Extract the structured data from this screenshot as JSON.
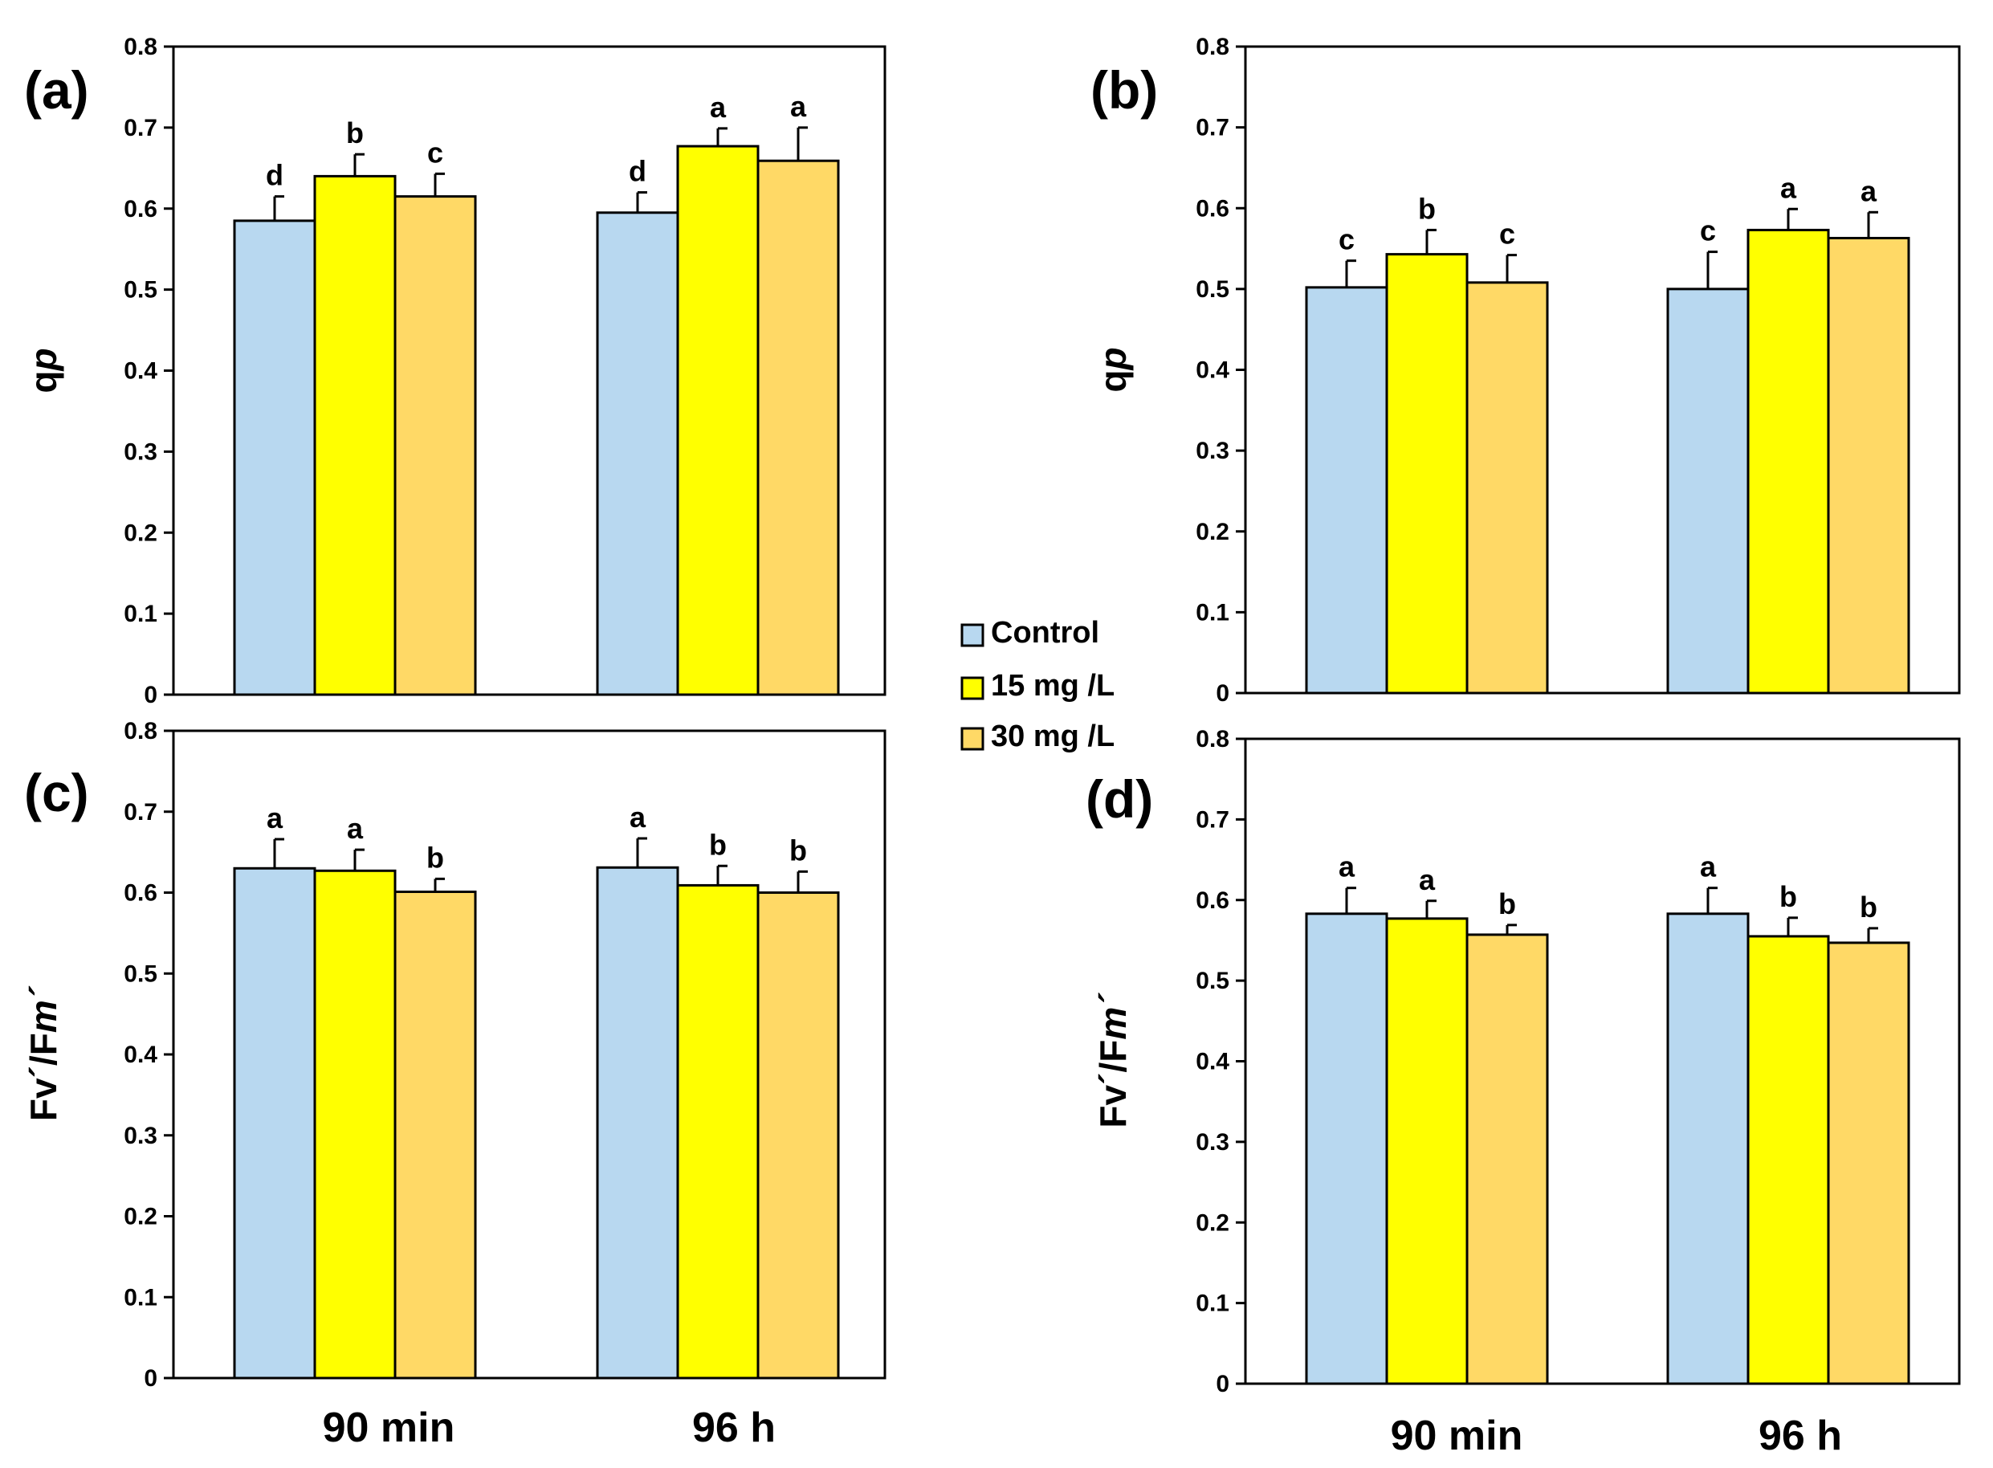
{
  "chart_data": {
    "type": "bar",
    "categories": [
      "90 min",
      "96 h"
    ],
    "legend": {
      "entries": [
        {
          "name": "Control",
          "color": "#b8d8f0"
        },
        {
          "name": "15 mg /L",
          "color": "#ffff00"
        },
        {
          "name": "30 mg /L",
          "color": "#ffd966"
        }
      ]
    },
    "ylim": [
      0,
      0.8
    ],
    "yticks": [
      "0",
      "0.1",
      "0.2",
      "0.3",
      "0.4",
      "0.5",
      "0.6",
      "0.7",
      "0.8"
    ],
    "panels": [
      {
        "id": "a",
        "label": "(a)",
        "ylabel": "q",
        "ylabel_italic": "p",
        "series": [
          {
            "name": "Control",
            "values": [
              0.585,
              0.595
            ],
            "errors": [
              0.03,
              0.025
            ],
            "letters": [
              "d",
              "d"
            ]
          },
          {
            "name": "15 mg /L",
            "values": [
              0.64,
              0.677
            ],
            "errors": [
              0.027,
              0.022
            ],
            "letters": [
              "b",
              "a"
            ]
          },
          {
            "name": "30 mg /L",
            "values": [
              0.615,
              0.659
            ],
            "errors": [
              0.028,
              0.041
            ],
            "letters": [
              "c",
              "a"
            ]
          }
        ]
      },
      {
        "id": "b",
        "label": "(b)",
        "ylabel": "q",
        "ylabel_italic": "p",
        "series": [
          {
            "name": "Control",
            "values": [
              0.502,
              0.5
            ],
            "errors": [
              0.033,
              0.046
            ],
            "letters": [
              "c",
              "c"
            ]
          },
          {
            "name": "15 mg /L",
            "values": [
              0.543,
              0.573
            ],
            "errors": [
              0.03,
              0.026
            ],
            "letters": [
              "b",
              "a"
            ]
          },
          {
            "name": "30 mg /L",
            "values": [
              0.508,
              0.563
            ],
            "errors": [
              0.034,
              0.032
            ],
            "letters": [
              "c",
              "a"
            ]
          }
        ]
      },
      {
        "id": "c",
        "label": "(c)",
        "ylabel": "Fv´/F",
        "ylabel_italic": "m´",
        "series": [
          {
            "name": "Control",
            "values": [
              0.63,
              0.631
            ],
            "errors": [
              0.036,
              0.036
            ],
            "letters": [
              "a",
              "a"
            ]
          },
          {
            "name": "15 mg /L",
            "values": [
              0.627,
              0.609
            ],
            "errors": [
              0.026,
              0.024
            ],
            "letters": [
              "a",
              "b"
            ]
          },
          {
            "name": "30 mg /L",
            "values": [
              0.601,
              0.6
            ],
            "errors": [
              0.016,
              0.026
            ],
            "letters": [
              "b",
              "b"
            ]
          }
        ]
      },
      {
        "id": "d",
        "label": "(d)",
        "ylabel": "Fv´/F",
        "ylabel_italic": "m´",
        "series": [
          {
            "name": "Control",
            "values": [
              0.583,
              0.583
            ],
            "errors": [
              0.032,
              0.032
            ],
            "letters": [
              "a",
              "a"
            ]
          },
          {
            "name": "15 mg /L",
            "values": [
              0.577,
              0.555
            ],
            "errors": [
              0.022,
              0.023
            ],
            "letters": [
              "a",
              "b"
            ]
          },
          {
            "name": "30 mg /L",
            "values": [
              0.557,
              0.547
            ],
            "errors": [
              0.012,
              0.018
            ],
            "letters": [
              "b",
              "b"
            ]
          }
        ]
      }
    ]
  }
}
